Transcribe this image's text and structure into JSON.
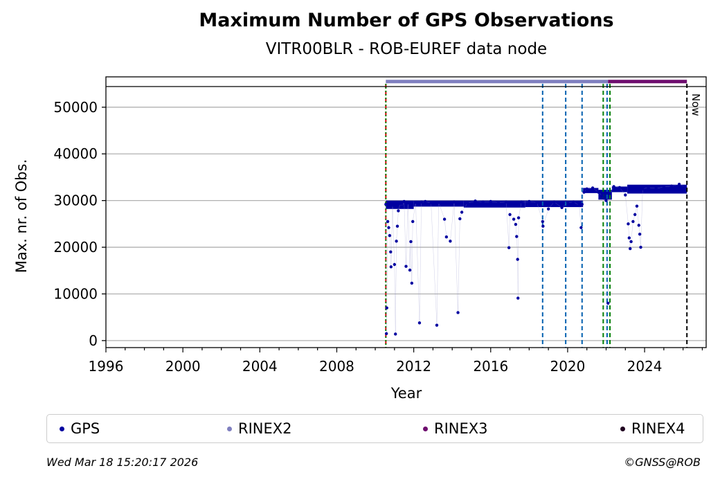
{
  "chart_data": {
    "type": "scatter",
    "title": "Maximum Number of GPS Observations",
    "subtitle": "VITR00BLR - ROB-EUREF data node",
    "xlabel": "Year",
    "ylabel": "Max. nr. of Obs.",
    "xlim": [
      1996,
      2027.2
    ],
    "ylim": [
      -1500,
      56500
    ],
    "xticks": [
      1996,
      2000,
      2004,
      2008,
      2012,
      2016,
      2020,
      2024
    ],
    "yticks": [
      0,
      10000,
      20000,
      30000,
      40000,
      50000
    ],
    "grid": "horizontal",
    "legend_position": "bottom",
    "series": [
      {
        "name": "GPS",
        "color": "#0000a0",
        "marker": "dot",
        "points": [
          [
            2010.55,
            29200
          ],
          [
            2010.58,
            1500
          ],
          [
            2010.6,
            7000
          ],
          [
            2010.65,
            25500
          ],
          [
            2010.7,
            24200
          ],
          [
            2010.75,
            22500
          ],
          [
            2010.8,
            19000
          ],
          [
            2010.82,
            15800
          ],
          [
            2010.9,
            29000
          ],
          [
            2011.0,
            16300
          ],
          [
            2011.05,
            1400
          ],
          [
            2011.1,
            21300
          ],
          [
            2011.15,
            24500
          ],
          [
            2011.2,
            27800
          ],
          [
            2011.3,
            29400
          ],
          [
            2011.4,
            28600
          ],
          [
            2011.5,
            29800
          ],
          [
            2011.6,
            15900
          ],
          [
            2011.7,
            29500
          ],
          [
            2011.8,
            15100
          ],
          [
            2011.85,
            21200
          ],
          [
            2011.9,
            12300
          ],
          [
            2011.95,
            25500
          ],
          [
            2012.1,
            29600
          ],
          [
            2012.3,
            3800
          ],
          [
            2012.4,
            29700
          ],
          [
            2012.6,
            29800
          ],
          [
            2012.9,
            29500
          ],
          [
            2013.2,
            3300
          ],
          [
            2013.3,
            29600
          ],
          [
            2013.6,
            26000
          ],
          [
            2013.7,
            22200
          ],
          [
            2013.9,
            21300
          ],
          [
            2014.1,
            29700
          ],
          [
            2014.3,
            6000
          ],
          [
            2014.4,
            26100
          ],
          [
            2014.5,
            27500
          ],
          [
            2014.8,
            29500
          ],
          [
            2015.2,
            29900
          ],
          [
            2015.6,
            29700
          ],
          [
            2016.0,
            29800
          ],
          [
            2016.4,
            29600
          ],
          [
            2016.8,
            29700
          ],
          [
            2016.95,
            19900
          ],
          [
            2017.0,
            27000
          ],
          [
            2017.2,
            26000
          ],
          [
            2017.3,
            24900
          ],
          [
            2017.35,
            22300
          ],
          [
            2017.4,
            17400
          ],
          [
            2017.42,
            9100
          ],
          [
            2017.45,
            26300
          ],
          [
            2017.6,
            29700
          ],
          [
            2018.0,
            29800
          ],
          [
            2018.4,
            29600
          ],
          [
            2018.7,
            25500
          ],
          [
            2018.72,
            24500
          ],
          [
            2019.0,
            28200
          ],
          [
            2019.3,
            29700
          ],
          [
            2019.7,
            28500
          ],
          [
            2020.0,
            29600
          ],
          [
            2020.3,
            29700
          ],
          [
            2020.6,
            29000
          ],
          [
            2020.7,
            24200
          ],
          [
            2020.75,
            29200
          ],
          [
            2020.85,
            31800
          ],
          [
            2021.0,
            32500
          ],
          [
            2021.3,
            32700
          ],
          [
            2021.6,
            31800
          ],
          [
            2021.8,
            31000
          ],
          [
            2021.9,
            30500
          ],
          [
            2022.0,
            30000
          ],
          [
            2022.1,
            8000
          ],
          [
            2022.2,
            31500
          ],
          [
            2022.4,
            33000
          ],
          [
            2022.7,
            32800
          ],
          [
            2023.0,
            31200
          ],
          [
            2023.15,
            25000
          ],
          [
            2023.2,
            22000
          ],
          [
            2023.25,
            19700
          ],
          [
            2023.3,
            21200
          ],
          [
            2023.4,
            25500
          ],
          [
            2023.5,
            27000
          ],
          [
            2023.6,
            28800
          ],
          [
            2023.7,
            24700
          ],
          [
            2023.75,
            22800
          ],
          [
            2023.8,
            20000
          ],
          [
            2023.9,
            32500
          ],
          [
            2024.2,
            32800
          ],
          [
            2024.6,
            32600
          ],
          [
            2025.0,
            32900
          ],
          [
            2025.4,
            33100
          ],
          [
            2025.8,
            33500
          ],
          [
            2026.1,
            33000
          ]
        ],
        "bands": [
          [
            2010.55,
            2012.0,
            28200,
            30000
          ],
          [
            2012.0,
            2014.6,
            28700,
            30000
          ],
          [
            2014.6,
            2017.8,
            28500,
            30000
          ],
          [
            2017.8,
            2020.8,
            28600,
            30000
          ],
          [
            2020.8,
            2021.6,
            31600,
            32700
          ],
          [
            2021.6,
            2022.3,
            30200,
            32300
          ],
          [
            2022.3,
            2023.1,
            31800,
            33000
          ],
          [
            2023.1,
            2026.2,
            31500,
            33400
          ]
        ]
      },
      {
        "name": "RINEX2",
        "color": "#7f7fbf",
        "segments": [
          [
            2010.55,
            2022.1
          ]
        ],
        "y": 55500
      },
      {
        "name": "RINEX3",
        "color": "#6e0d6e",
        "segments": [
          [
            2022.1,
            2026.2
          ]
        ],
        "y": 55500
      },
      {
        "name": "RINEX4",
        "color": "#200020",
        "segments": [],
        "y": 55500
      }
    ],
    "vertical_markers": [
      {
        "x": 2010.55,
        "color": "#d00000",
        "style": "dashed"
      },
      {
        "x": 2010.55,
        "color": "#008000",
        "style": "dotted"
      },
      {
        "x": 2018.7,
        "color": "#0060b0",
        "style": "dashed"
      },
      {
        "x": 2019.9,
        "color": "#0060b0",
        "style": "dashed"
      },
      {
        "x": 2020.75,
        "color": "#0060b0",
        "style": "dashed"
      },
      {
        "x": 2021.85,
        "color": "#008000",
        "style": "dashed"
      },
      {
        "x": 2022.05,
        "color": "#0060b0",
        "style": "dashed"
      },
      {
        "x": 2022.2,
        "color": "#008000",
        "style": "dashed"
      },
      {
        "x": 2026.2,
        "color": "#000000",
        "style": "dashed",
        "label": "Now"
      }
    ],
    "legend": [
      "GPS",
      "RINEX2",
      "RINEX3",
      "RINEX4"
    ]
  },
  "footer": {
    "timestamp": "Wed Mar 18 15:20:17 2026",
    "credit": "©GNSS@ROB"
  }
}
